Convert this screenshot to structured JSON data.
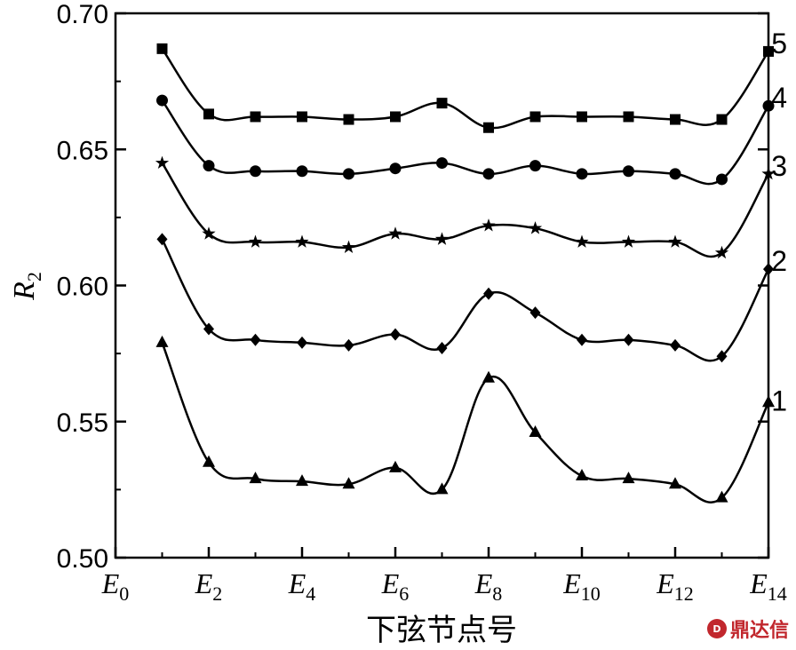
{
  "chart_data": {
    "type": "line",
    "title": "",
    "xlabel": "下弦节点号",
    "ylabel": {
      "base": "R",
      "sub": "2"
    },
    "ylim": [
      0.5,
      0.7
    ],
    "yticks": [
      "0.50",
      "0.55",
      "0.60",
      "0.65",
      "0.70"
    ],
    "xlim": [
      0,
      14
    ],
    "xticks": [
      {
        "value": 0,
        "base": "E",
        "sub": "0"
      },
      {
        "value": 2,
        "base": "E",
        "sub": "2"
      },
      {
        "value": 4,
        "base": "E",
        "sub": "4"
      },
      {
        "value": 6,
        "base": "E",
        "sub": "6"
      },
      {
        "value": 8,
        "base": "E",
        "sub": "8"
      },
      {
        "value": 10,
        "base": "E",
        "sub": "10"
      },
      {
        "value": 12,
        "base": "E",
        "sub": "12"
      },
      {
        "value": 14,
        "base": "E",
        "sub": "14"
      }
    ],
    "x": [
      1,
      2,
      3,
      4,
      5,
      6,
      7,
      8,
      9,
      10,
      11,
      12,
      13,
      14
    ],
    "grid": false,
    "series": [
      {
        "name": "1",
        "marker": "triangle",
        "values": [
          0.579,
          0.535,
          0.529,
          0.528,
          0.527,
          0.533,
          0.525,
          0.566,
          0.546,
          0.53,
          0.529,
          0.527,
          0.522,
          0.557
        ]
      },
      {
        "name": "2",
        "marker": "diamond",
        "values": [
          0.617,
          0.584,
          0.58,
          0.579,
          0.578,
          0.582,
          0.577,
          0.597,
          0.59,
          0.58,
          0.58,
          0.578,
          0.574,
          0.606
        ]
      },
      {
        "name": "3",
        "marker": "star",
        "values": [
          0.645,
          0.619,
          0.616,
          0.616,
          0.614,
          0.619,
          0.617,
          0.622,
          0.621,
          0.616,
          0.616,
          0.616,
          0.612,
          0.641
        ]
      },
      {
        "name": "4",
        "marker": "circle",
        "values": [
          0.668,
          0.644,
          0.642,
          0.642,
          0.641,
          0.643,
          0.645,
          0.641,
          0.644,
          0.641,
          0.642,
          0.641,
          0.639,
          0.666
        ]
      },
      {
        "name": "5",
        "marker": "square",
        "values": [
          0.687,
          0.663,
          0.662,
          0.662,
          0.661,
          0.662,
          0.667,
          0.658,
          0.662,
          0.662,
          0.662,
          0.661,
          0.661,
          0.686
        ]
      }
    ]
  },
  "watermark": {
    "text": "鼎达信"
  }
}
